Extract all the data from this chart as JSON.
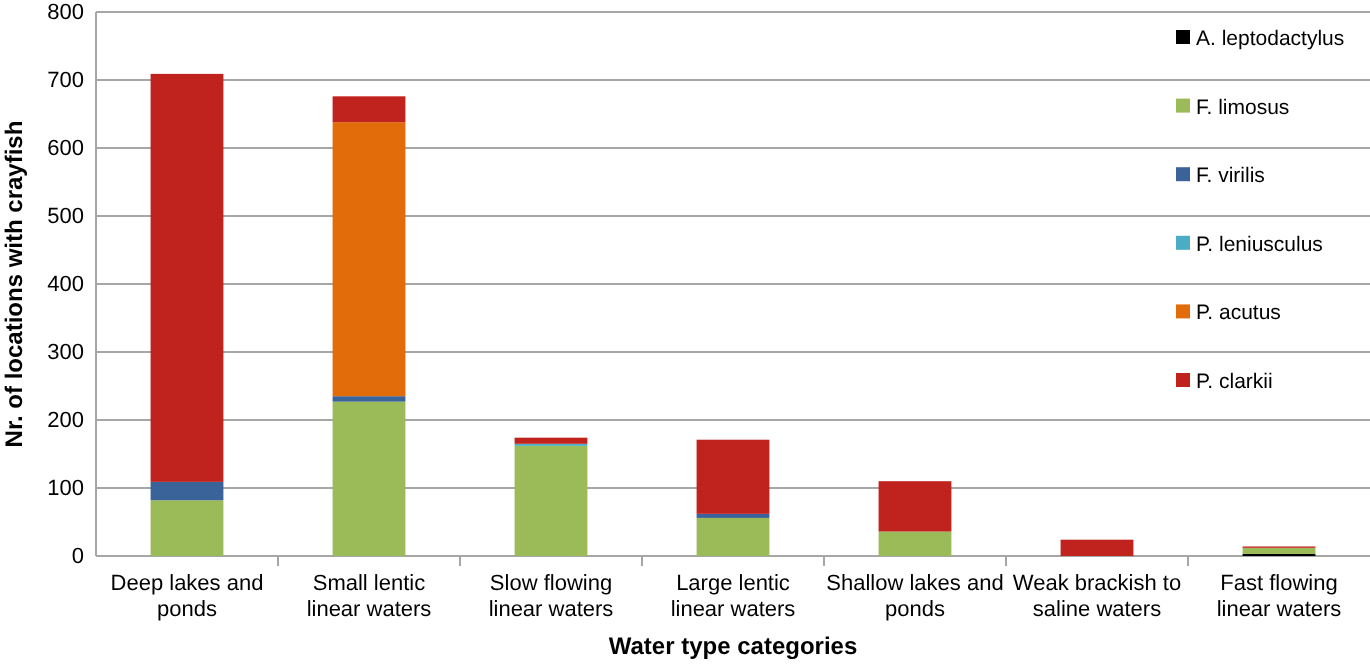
{
  "chart_data": {
    "type": "bar",
    "stacked": true,
    "xlabel": "Water type categories",
    "ylabel": "Nr. of locations with crayfish",
    "categories": [
      "Deep lakes and ponds",
      "Small lentic linear waters",
      "Slow flowing linear waters",
      "Large lentic linear waters",
      "Shallow lakes and ponds",
      "Weak brackish to saline waters",
      "Fast flowing linear waters"
    ],
    "series": [
      {
        "name": "A. leptodactylus",
        "color": "#000000",
        "values": [
          0,
          0,
          0,
          0,
          0,
          0,
          3
        ]
      },
      {
        "name": "F. limosus",
        "color": "#9bbb59",
        "values": [
          82,
          227,
          162,
          56,
          36,
          0,
          9
        ]
      },
      {
        "name": "F. virilis",
        "color": "#3a6499",
        "values": [
          27,
          8,
          0,
          6,
          0,
          0,
          0
        ]
      },
      {
        "name": "P. leniusculus",
        "color": "#4bacc6",
        "values": [
          0,
          0,
          3,
          0,
          0,
          0,
          0
        ]
      },
      {
        "name": "P. acutus",
        "color": "#e36c0a",
        "values": [
          0,
          403,
          0,
          0,
          0,
          0,
          0
        ]
      },
      {
        "name": "P. clarkii",
        "color": "#c0221e",
        "values": [
          600,
          38,
          9,
          109,
          74,
          24,
          2
        ]
      }
    ],
    "ylim": [
      0,
      800
    ],
    "yticks": [
      0,
      100,
      200,
      300,
      400,
      500,
      600,
      700,
      800
    ],
    "grid": "y",
    "legend": "right"
  }
}
